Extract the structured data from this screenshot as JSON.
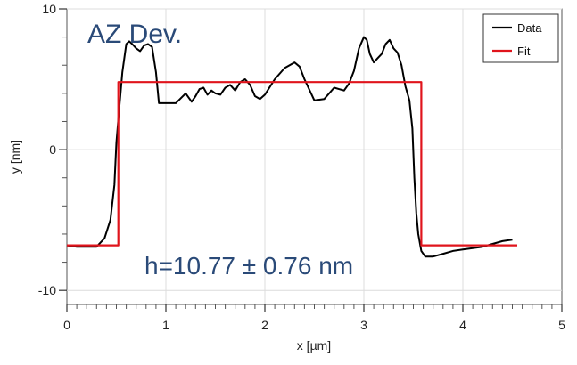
{
  "chart_data": {
    "type": "line",
    "xlabel": "x [µm]",
    "ylabel": "y [nm]",
    "xlim": [
      0,
      5
    ],
    "ylim": [
      -11,
      10
    ],
    "x_ticks": [
      0,
      1,
      2,
      3,
      4,
      5
    ],
    "y_ticks": [
      -10,
      0,
      10
    ],
    "x_tick_labels": [
      "0",
      "1",
      "2",
      "3",
      "4",
      "5"
    ],
    "y_tick_labels": [
      "-10",
      "0",
      "10"
    ],
    "grid": true,
    "legend_position": "top-right",
    "annotations": {
      "title": "AZ Dev.",
      "height": "h=10.77 ± 0.76 nm"
    },
    "series": [
      {
        "name": "Data",
        "color": "#000000",
        "x": [
          0.0,
          0.1,
          0.2,
          0.3,
          0.38,
          0.44,
          0.48,
          0.5,
          0.53,
          0.56,
          0.6,
          0.63,
          0.66,
          0.7,
          0.74,
          0.78,
          0.82,
          0.86,
          0.9,
          0.93,
          0.96,
          1.0,
          1.1,
          1.2,
          1.26,
          1.3,
          1.34,
          1.38,
          1.42,
          1.46,
          1.5,
          1.55,
          1.6,
          1.65,
          1.7,
          1.75,
          1.8,
          1.85,
          1.9,
          1.95,
          2.0,
          2.1,
          2.2,
          2.3,
          2.35,
          2.4,
          2.5,
          2.6,
          2.7,
          2.8,
          2.85,
          2.9,
          2.95,
          3.0,
          3.03,
          3.06,
          3.1,
          3.14,
          3.18,
          3.22,
          3.26,
          3.3,
          3.34,
          3.38,
          3.42,
          3.46,
          3.49,
          3.51,
          3.53,
          3.55,
          3.58,
          3.62,
          3.7,
          3.8,
          3.9,
          4.0,
          4.1,
          4.2,
          4.3,
          4.4,
          4.5
        ],
        "y": [
          -6.8,
          -6.9,
          -6.9,
          -6.9,
          -6.3,
          -5.0,
          -2.5,
          0.5,
          3.0,
          5.5,
          7.5,
          7.7,
          7.5,
          7.2,
          7.0,
          7.4,
          7.5,
          7.3,
          5.5,
          3.3,
          3.3,
          3.3,
          3.3,
          4.0,
          3.4,
          3.8,
          4.3,
          4.4,
          3.9,
          4.2,
          4.0,
          3.9,
          4.4,
          4.6,
          4.2,
          4.8,
          5.0,
          4.6,
          3.8,
          3.6,
          3.9,
          5.0,
          5.8,
          6.2,
          5.9,
          5.0,
          3.5,
          3.6,
          4.4,
          4.2,
          4.7,
          5.6,
          7.2,
          8.0,
          7.8,
          6.8,
          6.2,
          6.5,
          6.8,
          7.5,
          7.8,
          7.2,
          6.9,
          6.0,
          4.5,
          3.5,
          1.5,
          -2.0,
          -4.5,
          -6.0,
          -7.2,
          -7.6,
          -7.6,
          -7.4,
          -7.2,
          -7.1,
          -7.0,
          -6.9,
          -6.7,
          -6.5,
          -6.4
        ]
      },
      {
        "name": "Fit",
        "color": "#e0141c",
        "x": [
          0.0,
          0.52,
          0.52,
          3.58,
          3.58,
          4.55
        ],
        "y": [
          -6.8,
          -6.8,
          4.8,
          4.8,
          -6.8,
          -6.8
        ]
      }
    ]
  }
}
